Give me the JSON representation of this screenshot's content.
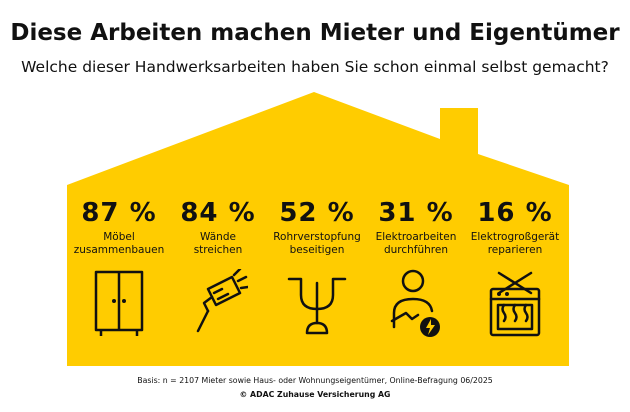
{
  "title": "Diese Arbeiten machen Mieter und Eigentümer",
  "subtitle": "Welche dieser Handwerksarbeiten haben Sie schon einmal selbst gemacht?",
  "colors": {
    "accent": "#ffcc00",
    "ink": "#111111",
    "background": "#ffffff"
  },
  "chart_data": {
    "type": "table",
    "categories": [
      "Möbel zusammenbauen",
      "Wände streichen",
      "Rohrverstopfung beseitigen",
      "Elektroarbeiten durchführen",
      "Elektrogroßgerät reparieren"
    ],
    "values": [
      87,
      84,
      52,
      31,
      16
    ],
    "unit": "%",
    "items": [
      {
        "value": "87 %",
        "label_line1": "Möbel",
        "label_line2": "zusammenbauen",
        "icon": "wardrobe-icon"
      },
      {
        "value": "84 %",
        "label_line1": "Wände",
        "label_line2": "streichen",
        "icon": "paint-roller-icon"
      },
      {
        "value": "52 %",
        "label_line1": "Rohrverstopfung",
        "label_line2": "beseitigen",
        "icon": "plunger-pipe-icon"
      },
      {
        "value": "31 %",
        "label_line1": "Elektroarbeiten",
        "label_line2": "durchführen",
        "icon": "electrician-icon"
      },
      {
        "value": "16 %",
        "label_line1": "Elektrogroßgerät",
        "label_line2": "reparieren",
        "icon": "oven-repair-icon"
      }
    ]
  },
  "footer": {
    "basis": "Basis: n = 2107 Mieter sowie Haus- oder Wohnungseigentümer, Online-Befragung 06/2025",
    "copyright": "© ADAC Zuhause Versicherung AG"
  }
}
